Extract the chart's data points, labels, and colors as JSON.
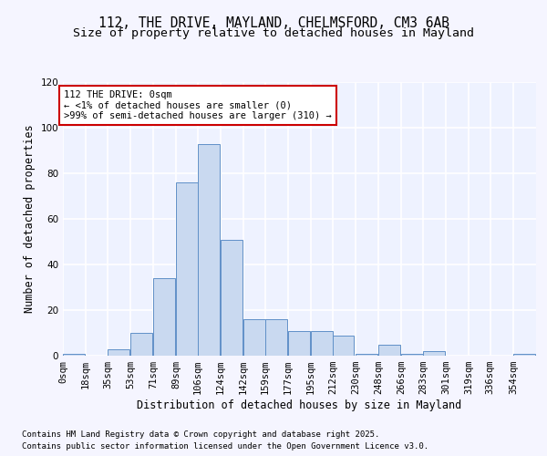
{
  "title_line1": "112, THE DRIVE, MAYLAND, CHELMSFORD, CM3 6AB",
  "title_line2": "Size of property relative to detached houses in Mayland",
  "xlabel": "Distribution of detached houses by size in Mayland",
  "ylabel": "Number of detached properties",
  "bin_labels": [
    "0sqm",
    "18sqm",
    "35sqm",
    "53sqm",
    "71sqm",
    "89sqm",
    "106sqm",
    "124sqm",
    "142sqm",
    "159sqm",
    "177sqm",
    "195sqm",
    "212sqm",
    "230sqm",
    "248sqm",
    "266sqm",
    "283sqm",
    "301sqm",
    "319sqm",
    "336sqm",
    "354sqm"
  ],
  "bin_edges": [
    0,
    18,
    35,
    53,
    71,
    89,
    106,
    124,
    142,
    159,
    177,
    195,
    212,
    230,
    248,
    266,
    283,
    301,
    319,
    336,
    354
  ],
  "values": [
    1,
    0,
    3,
    10,
    34,
    76,
    93,
    51,
    16,
    16,
    11,
    11,
    9,
    1,
    5,
    1,
    2,
    0,
    0,
    0,
    1
  ],
  "bar_color": "#c9d9f0",
  "bar_edge_color": "#6090c8",
  "ylim": [
    0,
    120
  ],
  "yticks": [
    0,
    20,
    40,
    60,
    80,
    100,
    120
  ],
  "annotation_box_text": "112 THE DRIVE: 0sqm\n← <1% of detached houses are smaller (0)\n>99% of semi-detached houses are larger (310) →",
  "annotation_box_color": "#ffffff",
  "annotation_box_edge_color": "#cc0000",
  "footer_line1": "Contains HM Land Registry data © Crown copyright and database right 2025.",
  "footer_line2": "Contains public sector information licensed under the Open Government Licence v3.0.",
  "background_color": "#eef2ff",
  "fig_background_color": "#f5f5ff",
  "grid_color": "#ffffff",
  "title_fontsize": 10.5,
  "subtitle_fontsize": 9.5,
  "axis_label_fontsize": 8.5,
  "tick_fontsize": 7.5,
  "annotation_fontsize": 7.5,
  "footer_fontsize": 6.5
}
